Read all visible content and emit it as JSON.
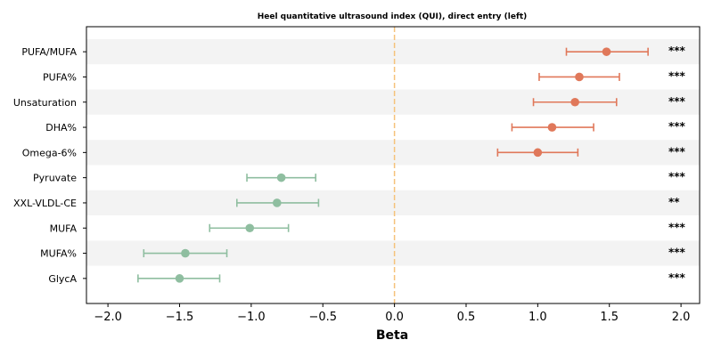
{
  "chart_data": {
    "type": "forest",
    "title": "Heel quantitative ultrasound index (QUI), direct entry (left)",
    "xlabel": "Beta",
    "ylabel": "",
    "xlim": [
      -2.15,
      2.13
    ],
    "xticks": [
      -2.0,
      -1.5,
      -1.0,
      -0.5,
      0.0,
      0.5,
      1.0,
      1.5,
      2.0
    ],
    "xtick_labels": [
      "−2.0",
      "−1.5",
      "−1.0",
      "−0.5",
      "0.0",
      "0.5",
      "1.0",
      "1.5",
      "2.0"
    ],
    "reference_line": {
      "x": 0.0,
      "style": "dashed",
      "color": "#f5c27a"
    },
    "band_colors": [
      "#f3f3f3",
      "#ffffff"
    ],
    "positive_color": "#e0785a",
    "negative_color": "#8fbea0",
    "rows": [
      {
        "label": "PUFA/MUFA",
        "beta": 1.48,
        "ci_low": 1.2,
        "ci_high": 1.77,
        "sig": "***"
      },
      {
        "label": "PUFA%",
        "beta": 1.29,
        "ci_low": 1.01,
        "ci_high": 1.57,
        "sig": "***"
      },
      {
        "label": "Unsaturation",
        "beta": 1.26,
        "ci_low": 0.97,
        "ci_high": 1.55,
        "sig": "***"
      },
      {
        "label": "DHA%",
        "beta": 1.1,
        "ci_low": 0.82,
        "ci_high": 1.39,
        "sig": "***"
      },
      {
        "label": "Omega-6%",
        "beta": 1.0,
        "ci_low": 0.72,
        "ci_high": 1.28,
        "sig": "***"
      },
      {
        "label": "Pyruvate",
        "beta": -0.79,
        "ci_low": -1.03,
        "ci_high": -0.55,
        "sig": "***"
      },
      {
        "label": "XXL-VLDL-CE",
        "beta": -0.82,
        "ci_low": -1.1,
        "ci_high": -0.53,
        "sig": "**"
      },
      {
        "label": "MUFA",
        "beta": -1.01,
        "ci_low": -1.29,
        "ci_high": -0.74,
        "sig": "***"
      },
      {
        "label": "MUFA%",
        "beta": -1.46,
        "ci_low": -1.75,
        "ci_high": -1.17,
        "sig": "***"
      },
      {
        "label": "GlycA",
        "beta": -1.5,
        "ci_low": -1.79,
        "ci_high": -1.22,
        "sig": "***"
      }
    ],
    "grid": false
  }
}
